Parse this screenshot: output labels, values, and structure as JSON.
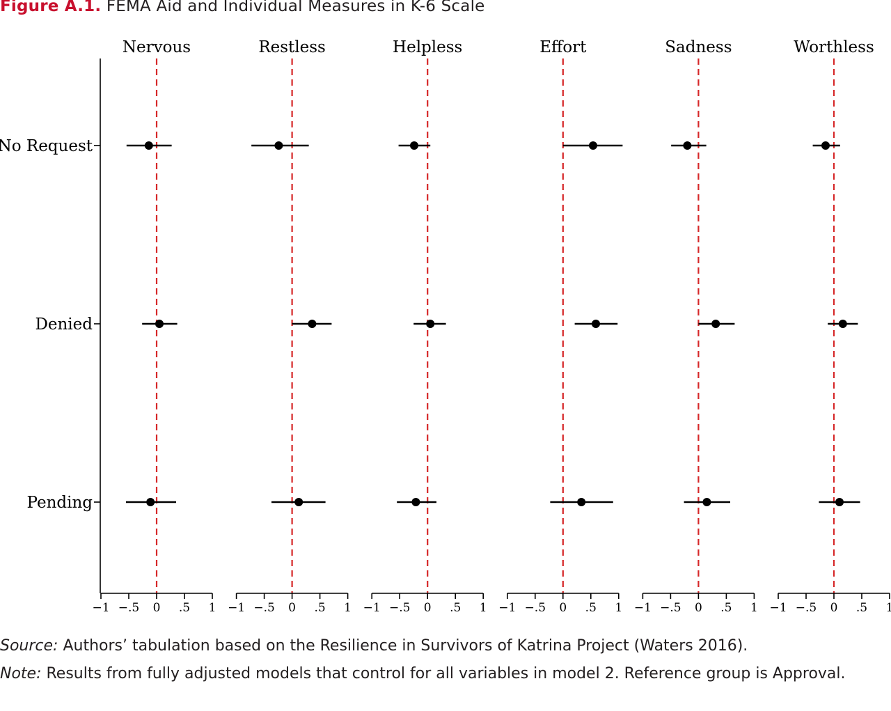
{
  "figure": {
    "label": "Figure A.1.",
    "title": "FEMA Aid and Individual Measures in K-6 Scale"
  },
  "colors": {
    "label_red": "#c8102e",
    "reference_line": "#d62728",
    "marker": "#000000"
  },
  "chart_data": {
    "type": "scatter",
    "subtype": "coefficient-plot",
    "rows": [
      "No Request",
      "Denied",
      "Pending"
    ],
    "xlim": [
      -1,
      1
    ],
    "xticks": [
      -1,
      -0.5,
      0,
      0.5,
      1
    ],
    "xtick_labels": [
      "−1",
      "−.5",
      "0",
      ".5",
      "1"
    ],
    "reference_line": 0,
    "panels": [
      {
        "name": "Nervous",
        "points": [
          {
            "group": "No Request",
            "estimate": -0.14,
            "ci": [
              -0.54,
              0.27
            ]
          },
          {
            "group": "Denied",
            "estimate": 0.05,
            "ci": [
              -0.26,
              0.37
            ]
          },
          {
            "group": "Pending",
            "estimate": -0.11,
            "ci": [
              -0.55,
              0.35
            ]
          }
        ]
      },
      {
        "name": "Restless",
        "points": [
          {
            "group": "No Request",
            "estimate": -0.24,
            "ci": [
              -0.73,
              0.3
            ]
          },
          {
            "group": "Denied",
            "estimate": 0.36,
            "ci": [
              0.0,
              0.71
            ]
          },
          {
            "group": "Pending",
            "estimate": 0.12,
            "ci": [
              -0.37,
              0.6
            ]
          }
        ]
      },
      {
        "name": "Helpless",
        "points": [
          {
            "group": "No Request",
            "estimate": -0.24,
            "ci": [
              -0.52,
              0.05
            ]
          },
          {
            "group": "Denied",
            "estimate": 0.05,
            "ci": [
              -0.25,
              0.33
            ]
          },
          {
            "group": "Pending",
            "estimate": -0.21,
            "ci": [
              -0.55,
              0.16
            ]
          }
        ]
      },
      {
        "name": "Effort",
        "points": [
          {
            "group": "No Request",
            "estimate": 0.54,
            "ci": [
              0.0,
              1.07
            ]
          },
          {
            "group": "Denied",
            "estimate": 0.59,
            "ci": [
              0.21,
              0.98
            ]
          },
          {
            "group": "Pending",
            "estimate": 0.33,
            "ci": [
              -0.23,
              0.9
            ]
          }
        ]
      },
      {
        "name": "Sadness",
        "points": [
          {
            "group": "No Request",
            "estimate": -0.2,
            "ci": [
              -0.49,
              0.14
            ]
          },
          {
            "group": "Denied",
            "estimate": 0.31,
            "ci": [
              0.0,
              0.65
            ]
          },
          {
            "group": "Pending",
            "estimate": 0.15,
            "ci": [
              -0.26,
              0.57
            ]
          }
        ]
      },
      {
        "name": "Worthless",
        "points": [
          {
            "group": "No Request",
            "estimate": -0.15,
            "ci": [
              -0.38,
              0.11
            ]
          },
          {
            "group": "Denied",
            "estimate": 0.16,
            "ci": [
              -0.11,
              0.43
            ]
          },
          {
            "group": "Pending",
            "estimate": 0.1,
            "ci": [
              -0.27,
              0.47
            ]
          }
        ]
      }
    ]
  },
  "notes": {
    "source_label": "Source:",
    "source_text": " Authors’ tabulation based on the Resilience in Survivors of Katrina Project (Waters 2016).",
    "note_label": "Note:",
    "note_text": " Results from fully adjusted models that control for all variables in model 2. Reference group is Approval."
  }
}
